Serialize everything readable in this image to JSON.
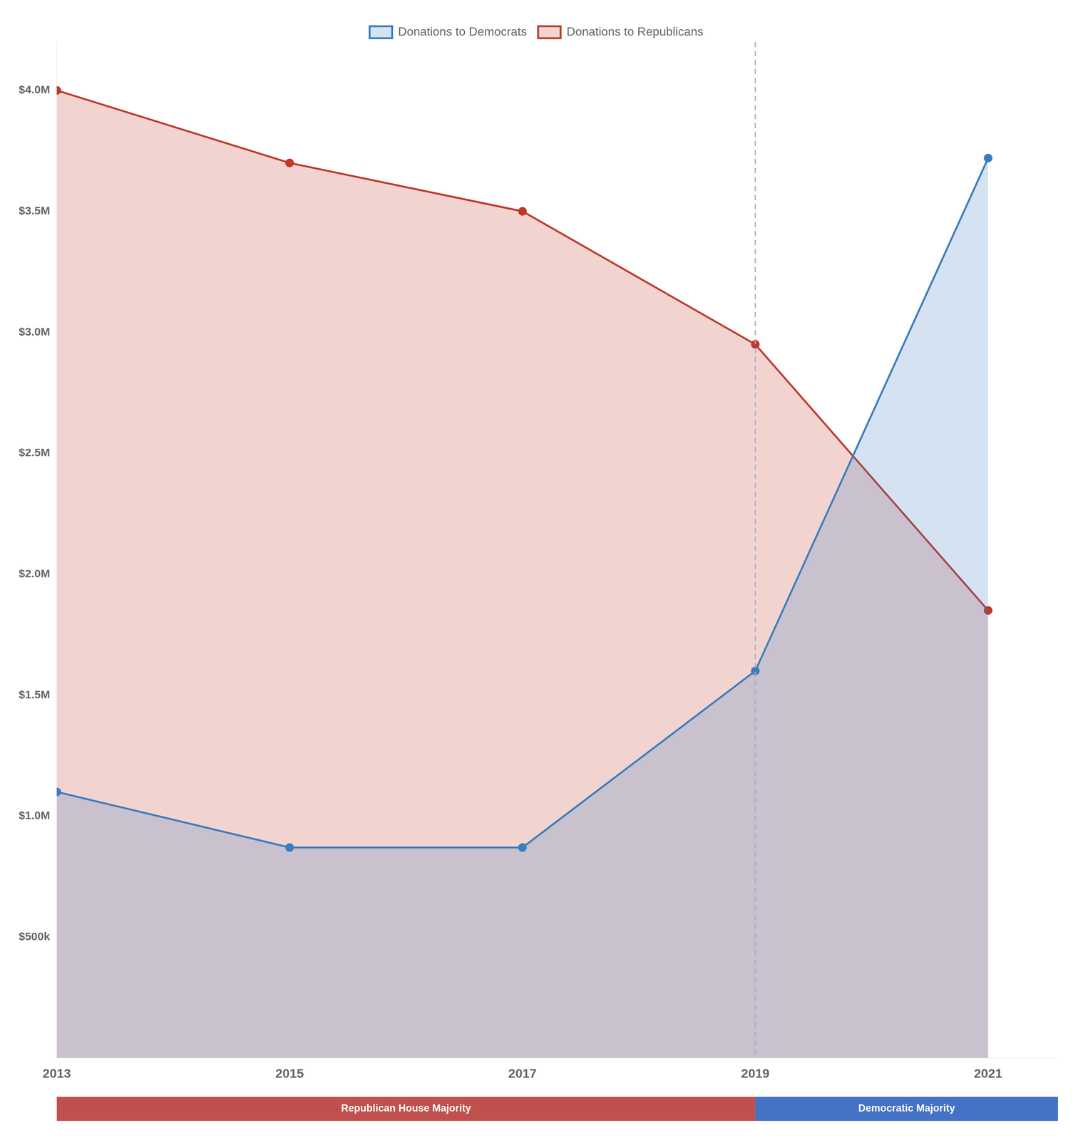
{
  "chart_data": {
    "type": "line",
    "x": [
      2013,
      2015,
      2017,
      2019,
      2021
    ],
    "series": [
      {
        "name": "Donations to Democrats",
        "color": "#3a7dbf",
        "values": [
          1100000,
          870000,
          870000,
          1600000,
          3720000
        ]
      },
      {
        "name": "Donations to Republicans",
        "color": "#c0392b",
        "values": [
          4000000,
          3700000,
          3500000,
          2950000,
          1850000
        ]
      }
    ],
    "xlim": [
      2013,
      2021.6
    ],
    "xticks": [
      2013,
      2015,
      2017,
      2019,
      2021
    ],
    "ylim": [
      0,
      4200000
    ],
    "yticks": [
      {
        "value": 500000,
        "label": "$500k"
      },
      {
        "value": 1000000,
        "label": "$1.0M"
      },
      {
        "value": 1500000,
        "label": "$1.5M"
      },
      {
        "value": 2000000,
        "label": "$2.0M"
      },
      {
        "value": 2500000,
        "label": "$2.5M"
      },
      {
        "value": 3000000,
        "label": "$3.0M"
      },
      {
        "value": 3500000,
        "label": "$3.5M"
      },
      {
        "value": 4000000,
        "label": "$4.0M"
      }
    ],
    "grid": false,
    "legend": "top",
    "marker": "o",
    "annotations": [
      {
        "type": "vline",
        "x": 2019,
        "color": "#aaaacc",
        "line_style": "dashed"
      },
      {
        "type": "band",
        "text": "Republican House Majority",
        "x_start": 2013,
        "x_end": 2019,
        "color": "#c0504d"
      },
      {
        "type": "band",
        "text": "Democratic Majority",
        "x_start": 2019,
        "x_end": 2021.6,
        "color": "#4472c4"
      }
    ]
  }
}
